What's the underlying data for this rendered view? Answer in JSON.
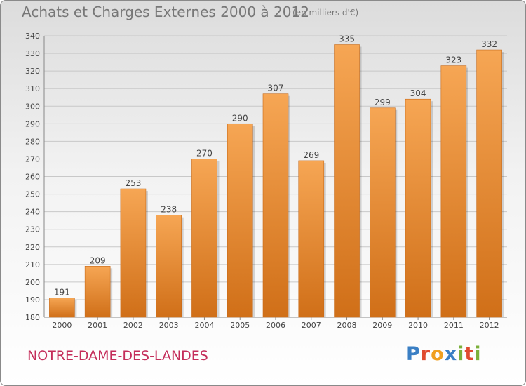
{
  "title": "Achats et Charges Externes 2000 à 2012",
  "subtitle": "(en milliers d'€)",
  "commune": "NOTRE-DAME-DES-LANDES",
  "brand": {
    "text": "Proxiti",
    "letter_colors": [
      "#3a7fc4",
      "#e04a2f",
      "#f0a020",
      "#3a7fc4",
      "#7bb03a",
      "#e04a2f",
      "#7bb03a"
    ]
  },
  "colors": {
    "bar_top": "#f6a654",
    "bar_bottom": "#d06f18",
    "grid": "#c8c8c8",
    "text": "#444444",
    "commune": "#c42d5a"
  },
  "chart_data": {
    "type": "bar",
    "title": "Achats et Charges Externes 2000 à 2012",
    "subtitle": "(en milliers d'€)",
    "xlabel": "",
    "ylabel": "",
    "categories": [
      "2000",
      "2001",
      "2002",
      "2003",
      "2004",
      "2005",
      "2006",
      "2007",
      "2008",
      "2009",
      "2010",
      "2011",
      "2012"
    ],
    "values": [
      191,
      209,
      253,
      238,
      270,
      290,
      307,
      269,
      335,
      299,
      304,
      323,
      332
    ],
    "ylim": [
      180,
      340
    ],
    "yticks": [
      180,
      190,
      200,
      210,
      220,
      230,
      240,
      250,
      260,
      270,
      280,
      290,
      300,
      310,
      320,
      330,
      340
    ],
    "grid": true,
    "data_labels": true
  }
}
